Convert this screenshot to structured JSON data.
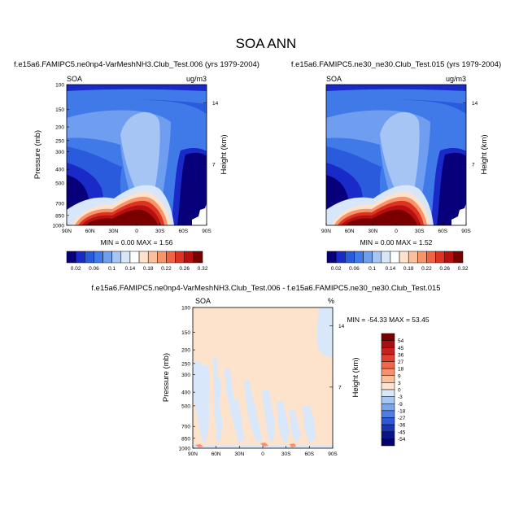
{
  "figure": {
    "title": "SOA ANN"
  },
  "chart_data": [
    {
      "type": "contour",
      "title": "f.e15a6.FAMIPC5.ne0np4-VarMeshNH3.Club_Test.006 (yrs 1979-2004)",
      "field_label": "SOA",
      "units": "ug/m3",
      "ylabel": "Pressure (mb)",
      "ylabel_right": "Height (km)",
      "x_ticks": [
        "90N",
        "60N",
        "30N",
        "0",
        "30S",
        "60S",
        "90S"
      ],
      "y_ticks": [
        "100",
        "150",
        "200",
        "250",
        "300",
        "400",
        "500",
        "700",
        "850",
        "1000"
      ],
      "y_ticks_right": [
        "14",
        "7"
      ],
      "stats": "MIN =  0.00  MAX =  1.56",
      "colorbar": {
        "labels": [
          "0.02",
          "0.06",
          "0.1",
          "0.14",
          "0.18",
          "0.22",
          "0.26",
          "0.32"
        ],
        "colors": [
          "#08007a",
          "#1a2ac8",
          "#2a5bdc",
          "#3f7ae8",
          "#6f9df0",
          "#a6c4f4",
          "#d8e6fa",
          "#ffffff",
          "#fde2cc",
          "#fbc09a",
          "#f7946a",
          "#ef6242",
          "#dc3322",
          "#b80f0f",
          "#7a0000"
        ]
      },
      "maximum_region": "lower troposphere 60N-30S"
    },
    {
      "type": "contour",
      "title": "f.e15a6.FAMIPC5.ne30_ne30.Club_Test.015 (yrs 1979-2004)",
      "field_label": "SOA",
      "units": "ug/m3",
      "ylabel_right": "Height (km)",
      "x_ticks": [
        "90N",
        "60N",
        "30N",
        "0",
        "30S",
        "60S",
        "90S"
      ],
      "y_ticks_right": [
        "14",
        "7"
      ],
      "stats": "MIN =  0.00  MAX =  1.52",
      "colorbar": {
        "labels": [
          "0.02",
          "0.06",
          "0.1",
          "0.14",
          "0.18",
          "0.22",
          "0.26",
          "0.32"
        ],
        "colors": [
          "#08007a",
          "#1a2ac8",
          "#2a5bdc",
          "#3f7ae8",
          "#6f9df0",
          "#a6c4f4",
          "#d8e6fa",
          "#ffffff",
          "#fde2cc",
          "#fbc09a",
          "#f7946a",
          "#ef6242",
          "#dc3322",
          "#b80f0f",
          "#7a0000"
        ]
      }
    },
    {
      "type": "contour",
      "title": "f.e15a6.FAMIPC5.ne0np4-VarMeshNH3.Club_Test.006 - f.e15a6.FAMIPC5.ne30_ne30.Club_Test.015",
      "field_label": "SOA",
      "units": "%",
      "ylabel": "Pressure (mb)",
      "ylabel_right": "Height (km)",
      "x_ticks": [
        "90N",
        "60N",
        "30N",
        "0",
        "30S",
        "60S",
        "90S"
      ],
      "y_ticks": [
        "100",
        "150",
        "200",
        "250",
        "300",
        "400",
        "500",
        "700",
        "850",
        "1000"
      ],
      "y_ticks_right": [
        "14",
        "7"
      ],
      "stats": "MIN = -54.33  MAX = 53.45",
      "colorbar": {
        "labels": [
          "54",
          "45",
          "36",
          "27",
          "18",
          "9",
          "3",
          "0",
          "-3",
          "-9",
          "-18",
          "-27",
          "-36",
          "-45",
          "-54"
        ],
        "colors": [
          "#7a0000",
          "#a50f0f",
          "#c82020",
          "#e04030",
          "#f06848",
          "#f79070",
          "#fbbf9c",
          "#fde2cc",
          "#d8e8fa",
          "#a8c6f4",
          "#7aa4ee",
          "#4f7ee4",
          "#2e58d6",
          "#1a34b8",
          "#0a148a",
          "#05006a"
        ]
      }
    }
  ]
}
